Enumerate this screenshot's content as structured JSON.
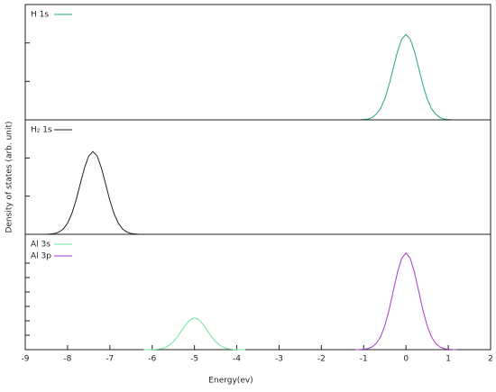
{
  "chart_data": [
    {
      "type": "line",
      "legend": "upper left",
      "xlim": [
        -9,
        2
      ],
      "ylim": [
        0,
        3
      ],
      "yticks": [
        1,
        2
      ],
      "series": [
        {
          "name": "H 1s",
          "color": "#2aa67d",
          "x": [
            -1.2,
            -1.1,
            -1,
            -0.9,
            -0.8,
            -0.7,
            -0.6,
            -0.5,
            -0.4,
            -0.3,
            -0.2,
            -0.1,
            0,
            0.1,
            0.2,
            0.3,
            0.4,
            0.5,
            0.6,
            0.7,
            0.8,
            0.9,
            1,
            1.1,
            1.2
          ],
          "values": [
            0,
            0,
            0.01,
            0.02,
            0.06,
            0.15,
            0.3,
            0.55,
            0.91,
            1.35,
            1.78,
            2.1,
            2.22,
            2.1,
            1.78,
            1.35,
            0.91,
            0.55,
            0.3,
            0.15,
            0.06,
            0.02,
            0.01,
            0,
            0
          ]
        }
      ]
    },
    {
      "type": "line",
      "legend": "upper left",
      "xlim": [
        -9,
        2
      ],
      "ylim": [
        0,
        3
      ],
      "yticks": [
        1,
        2
      ],
      "ylabel": "Density of states (arb. unit)",
      "series": [
        {
          "name": "H₂ 1s",
          "color": "#222222",
          "x": [
            -8.6,
            -8.5,
            -8.4,
            -8.3,
            -8.2,
            -8.1,
            -8,
            -7.9,
            -7.8,
            -7.7,
            -7.6,
            -7.5,
            -7.4,
            -7.3,
            -7.2,
            -7.1,
            -7,
            -6.9,
            -6.8,
            -6.7,
            -6.6,
            -6.5,
            -6.4,
            -6.3,
            -6.2
          ],
          "values": [
            0,
            0,
            0.01,
            0.02,
            0.06,
            0.14,
            0.29,
            0.54,
            0.89,
            1.32,
            1.74,
            2.05,
            2.17,
            2.05,
            1.74,
            1.32,
            0.89,
            0.54,
            0.29,
            0.14,
            0.06,
            0.02,
            0.01,
            0,
            0
          ]
        }
      ]
    },
    {
      "type": "line",
      "legend": "upper left",
      "xlim": [
        -9,
        2
      ],
      "ylim": [
        0,
        8
      ],
      "yticks": [
        1,
        2,
        3,
        4,
        5,
        6
      ],
      "xticks": [
        -9,
        -8,
        -7,
        -6,
        -5,
        -4,
        -3,
        -2,
        -1,
        0,
        1,
        2
      ],
      "xlabel": "Energy(ev)",
      "series": [
        {
          "name": "Al 3s",
          "color": "#6fe3a0",
          "x": [
            -6.2,
            -6.1,
            -6,
            -5.9,
            -5.8,
            -5.7,
            -5.6,
            -5.5,
            -5.4,
            -5.3,
            -5.2,
            -5.1,
            -5,
            -4.9,
            -4.8,
            -4.7,
            -4.6,
            -4.5,
            -4.4,
            -4.3,
            -4.2,
            -4.1,
            -4,
            -3.9,
            -3.8
          ],
          "values": [
            0,
            0,
            0.01,
            0.02,
            0.06,
            0.14,
            0.3,
            0.55,
            0.9,
            1.34,
            1.76,
            2.08,
            2.2,
            2.08,
            1.76,
            1.34,
            0.9,
            0.55,
            0.3,
            0.14,
            0.06,
            0.02,
            0.01,
            0,
            0
          ]
        },
        {
          "name": "Al 3p",
          "color": "#a33cc7",
          "x": [
            -1.2,
            -1.1,
            -1,
            -0.9,
            -0.8,
            -0.7,
            -0.6,
            -0.5,
            -0.4,
            -0.3,
            -0.2,
            -0.1,
            0,
            0.1,
            0.2,
            0.3,
            0.4,
            0.5,
            0.6,
            0.7,
            0.8,
            0.9,
            1,
            1.1,
            1.2
          ],
          "values": [
            0,
            0.01,
            0.03,
            0.07,
            0.19,
            0.44,
            0.9,
            1.67,
            2.75,
            4.07,
            5.37,
            6.34,
            6.7,
            6.34,
            5.37,
            4.07,
            2.75,
            1.67,
            0.9,
            0.44,
            0.19,
            0.07,
            0.03,
            0.01,
            0
          ]
        }
      ]
    }
  ]
}
